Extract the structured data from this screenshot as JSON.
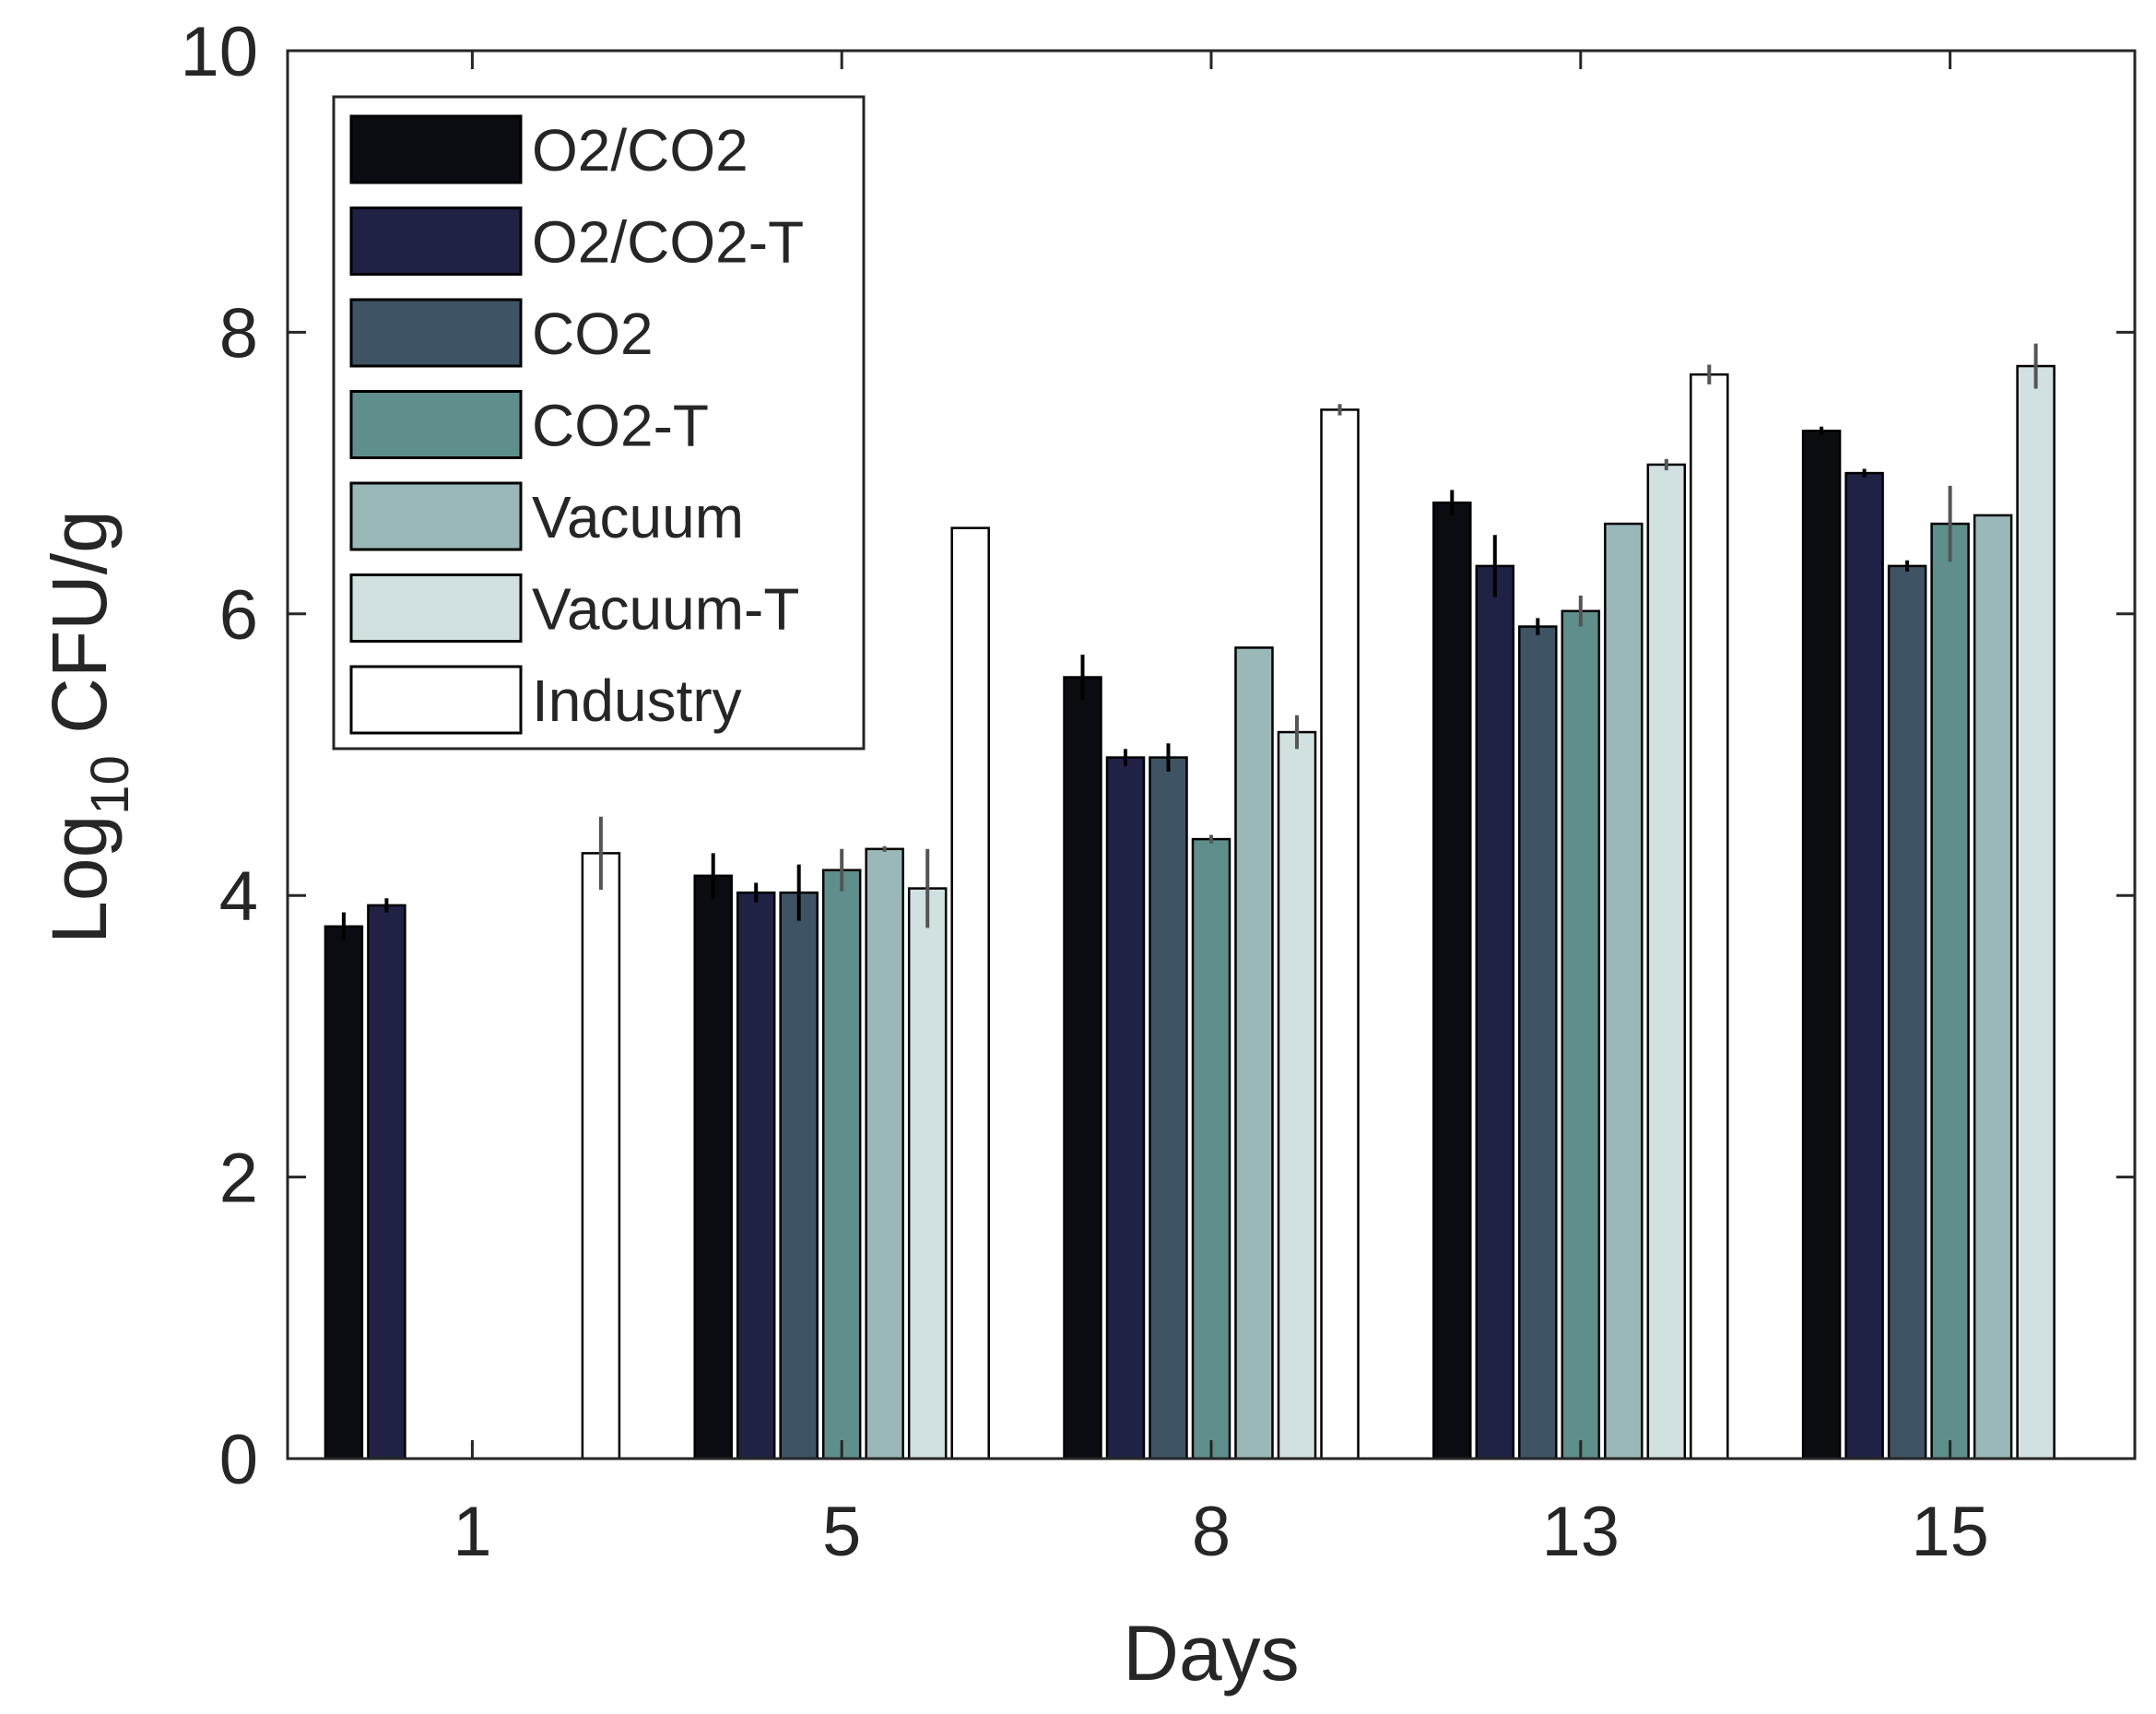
{
  "chart_data": {
    "type": "bar",
    "xlabel": "Days",
    "ylabel": {
      "prefix": "Log",
      "subscript": "10",
      "suffix": " CFU/g"
    },
    "categories": [
      "1",
      "5",
      "8",
      "13",
      "15"
    ],
    "ylim": [
      0,
      10
    ],
    "yticks": [
      "0",
      "2",
      "4",
      "6",
      "8",
      "10"
    ],
    "legend_position": "top-left",
    "grid": false,
    "error_bars": true,
    "series": [
      {
        "name": "O2/CO2",
        "color": "#0b0c12",
        "values": [
          3.78,
          4.14,
          5.55,
          6.79,
          7.3
        ],
        "errors": [
          0.1,
          0.16,
          0.16,
          0.09,
          0.03
        ]
      },
      {
        "name": "O2/CO2-T",
        "color": "#1f2145",
        "values": [
          3.93,
          4.02,
          4.98,
          6.34,
          7.0
        ],
        "errors": [
          0.05,
          0.07,
          0.06,
          0.22,
          0.03
        ]
      },
      {
        "name": "CO2",
        "color": "#3e5464",
        "values": [
          null,
          4.02,
          4.98,
          5.91,
          6.34
        ],
        "errors": [
          null,
          0.2,
          0.1,
          0.06,
          0.04
        ]
      },
      {
        "name": "CO2-T",
        "color": "#5e8f8d",
        "values": [
          null,
          4.18,
          4.4,
          6.02,
          6.64
        ],
        "errors": [
          null,
          0.15,
          0.03,
          0.11,
          0.27
        ]
      },
      {
        "name": "Vacuum",
        "color": "#9ab8b7",
        "values": [
          null,
          4.33,
          5.76,
          6.64,
          6.7
        ],
        "errors": [
          null,
          0.02,
          0.0,
          0.0,
          0.0
        ]
      },
      {
        "name": "Vacuum-T",
        "color": "#d1e0e0",
        "values": [
          null,
          4.05,
          5.16,
          7.06,
          7.76
        ],
        "errors": [
          null,
          0.28,
          0.12,
          0.04,
          0.16
        ]
      },
      {
        "name": "Industry",
        "color": "#ffffff",
        "values": [
          4.3,
          6.61,
          7.45,
          7.7,
          null
        ],
        "errors": [
          0.26,
          0.0,
          0.04,
          0.07,
          null
        ]
      }
    ]
  }
}
